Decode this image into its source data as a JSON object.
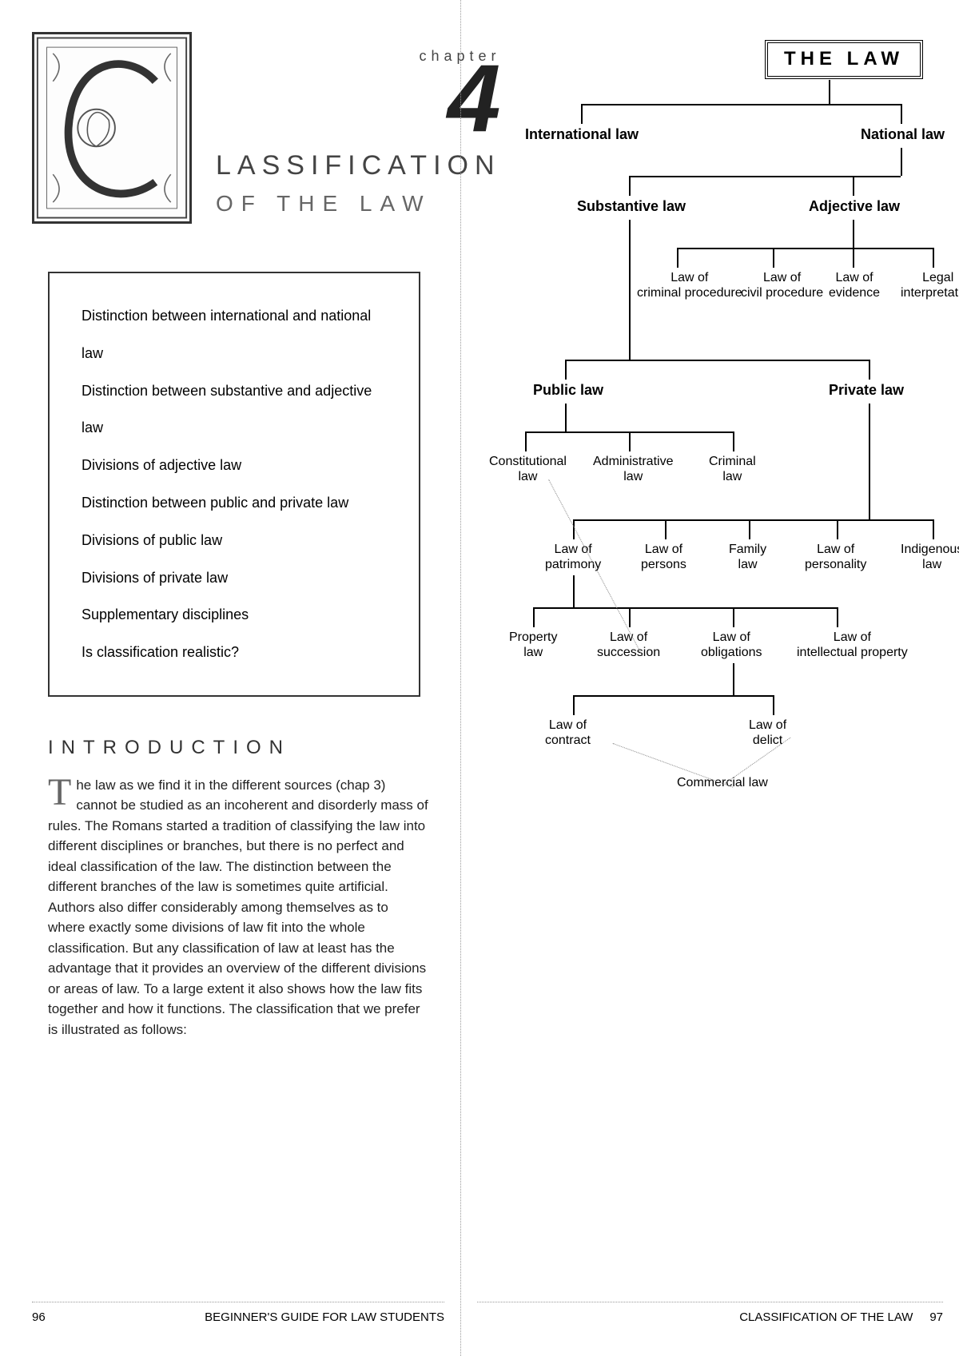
{
  "chapter": {
    "label": "chapter",
    "number": "4",
    "title_line1": "LASSIFICATION",
    "title_line2": "OF THE LAW"
  },
  "contents": {
    "items": [
      "Distinction between international and national law",
      "Distinction between substantive and adjective law",
      "Divisions of adjective law",
      "Distinction between public and private law",
      "Divisions of public law",
      "Divisions of private law",
      "Supplementary disciplines",
      "Is classification realistic?"
    ]
  },
  "intro": {
    "heading": "INTRODUCTION",
    "dropcap": "T",
    "body": "he law as we find it in the different sources (chap 3) cannot be studied as an incoherent and disorderly mass of rules. The Romans started a tradition of classifying the law into different disciplines or branches, but there is no perfect and ideal classification of the law. The distinction between the different branches of the law is sometimes quite artificial. Authors also differ considerably among themselves as to where exactly some divisions of law fit into the whole classification. But any classification of law at least has the advantage that it provides an overview of the different divisions or areas of law. To a large extent it also shows how the law fits together and how it functions. The classification that we prefer is illustrated as follows:"
  },
  "footer": {
    "left_pg": "96",
    "left_text": "BEGINNER'S GUIDE FOR LAW STUDENTS",
    "right_text": "CLASSIFICATION OF THE LAW",
    "right_pg": "97"
  },
  "tree": {
    "root": "THE LAW",
    "l1": {
      "a": "International law",
      "b": "National law"
    },
    "l2": {
      "a": "Substantive law",
      "b": "Adjective law"
    },
    "adj": {
      "a": "Law of criminal procedure",
      "b": "Law of civil procedure",
      "c": "Law of evidence",
      "d": "Legal interpretation"
    },
    "sub": {
      "a": "Public law",
      "b": "Private law"
    },
    "public": {
      "a": "Constitutional law",
      "b": "Administrative law",
      "c": "Criminal law"
    },
    "private": {
      "a": "Law of patrimony",
      "b": "Law of persons",
      "c": "Family law",
      "d": "Law of personality",
      "e": "Indigenous law"
    },
    "patrimony": {
      "a": "Property law",
      "b": "Law of succession",
      "c": "Law of obligations",
      "d": "Law of intellectual property"
    },
    "oblig": {
      "a": "Law of contract",
      "b": "Law of delict"
    },
    "commercial": "Commercial law"
  },
  "colors": {
    "line": "#000000",
    "text": "#000000",
    "bg": "#ffffff",
    "dotted": "#888888"
  }
}
